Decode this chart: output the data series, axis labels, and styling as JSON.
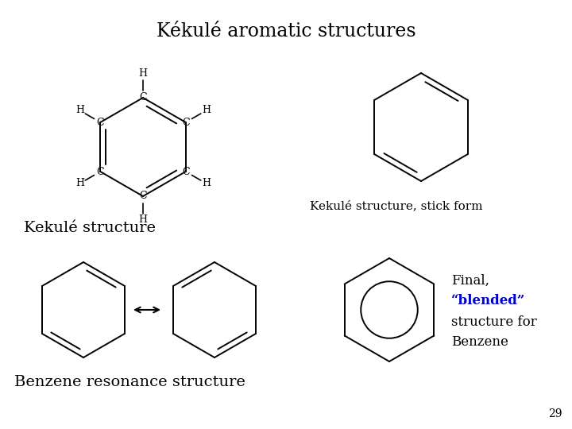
{
  "title": "Kékulé aromatic structures",
  "background_color": "#ffffff",
  "page_number": "29",
  "lc": "#000000",
  "blue_color": "#0000cd",
  "lw": 1.4,
  "labels": {
    "kekule_structure": "Kekulé structure",
    "kekule_stick": "Kekulé structure, stick form",
    "benzene_resonance": "Benzene resonance structure",
    "final_line1": "Final,",
    "final_line2": "“blended”",
    "final_line3": "structure for",
    "final_line4": "Benzene"
  }
}
